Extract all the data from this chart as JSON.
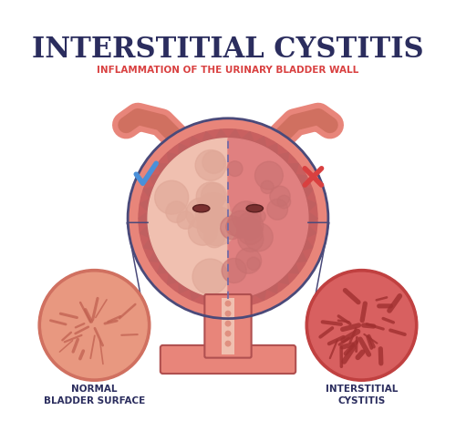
{
  "title": "INTERSTITIAL CYSTITIS",
  "subtitle": "INFLAMMATION OF THE URINARY BLADDER WALL",
  "title_color": "#2b2d5e",
  "subtitle_color": "#d94040",
  "label_left": "NORMAL\nBLADDER SURFACE",
  "label_right": "INTERSTITIAL\nCYSTITIS",
  "label_color": "#2b2d5e",
  "bg_color": "#ffffff",
  "bladder_outer_color": "#e8857a",
  "bladder_inner_color": "#f0a090",
  "bladder_fill_left": "#f5c0b0",
  "bladder_fill_right": "#e87870",
  "wall_color": "#d96060",
  "wall_inner_color": "#f0c0b0",
  "ureters_color": "#e8857a",
  "urethra_color": "#e8857a",
  "circle_left_color": "#e8857a",
  "circle_right_color": "#d05050",
  "checkmark_color": "#4a90d9",
  "cross_color": "#d94040",
  "line_color": "#4a4a7a",
  "dashed_line_color": "#6a6aaa"
}
